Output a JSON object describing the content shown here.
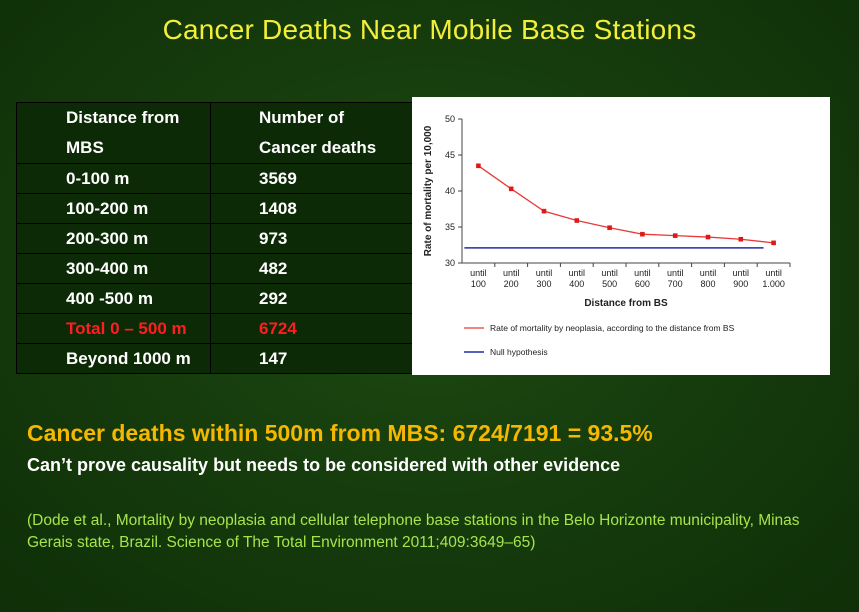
{
  "title": "Cancer Deaths Near Mobile Base Stations",
  "table": {
    "header": [
      "Distance from MBS",
      "Number of Cancer deaths"
    ],
    "header_lines": [
      [
        "Distance from",
        "MBS"
      ],
      [
        "Number of",
        "Cancer deaths"
      ]
    ],
    "rows": [
      [
        "0-100 m",
        "3569"
      ],
      [
        "100-200 m",
        "1408"
      ],
      [
        "200-300 m",
        "973"
      ],
      [
        "300-400 m",
        "482"
      ],
      [
        "400 -500 m",
        "292"
      ],
      [
        "Total 0 – 500 m",
        "6724"
      ],
      [
        "Beyond 1000 m",
        "147"
      ]
    ],
    "highlight_row": 5,
    "highlight_color": "#ff1e1e"
  },
  "chart_data": {
    "type": "line",
    "categories": [
      "until 100",
      "until 200",
      "until 300",
      "until 400",
      "until 500",
      "until 600",
      "until 700",
      "until 800",
      "until 900",
      "until 1.000"
    ],
    "category_lines": [
      [
        "until",
        "100"
      ],
      [
        "until",
        "200"
      ],
      [
        "until",
        "300"
      ],
      [
        "until",
        "400"
      ],
      [
        "until",
        "500"
      ],
      [
        "until",
        "600"
      ],
      [
        "until",
        "700"
      ],
      [
        "until",
        "800"
      ],
      [
        "until",
        "900"
      ],
      [
        "until",
        "1.000"
      ]
    ],
    "series": [
      {
        "name": "Rate of mortality by neoplasia, according to the distance from BS",
        "values": [
          43.5,
          40.3,
          37.2,
          35.9,
          34.9,
          34.0,
          33.8,
          33.6,
          33.3,
          32.8
        ],
        "color": "#e83a3a"
      },
      {
        "name": "Null hypothesis",
        "constant": 32.1,
        "color": "#1f2fa8"
      }
    ],
    "xlabel": "Distance from BS",
    "ylabel": "Rate of mortality per 10,000",
    "ylim": [
      30,
      50
    ],
    "yticks": [
      30,
      35,
      40,
      45,
      50
    ],
    "grid": false,
    "legend_position": "bottom"
  },
  "headline": "Cancer deaths within 500m from MBS: 6724/7191 = 93.5%",
  "subline": "Can’t prove causality but needs to be considered with other evidence",
  "citation": "(Dode et al., Mortality by neoplasia and cellular telephone base stations in the Belo Horizonte municipality, Minas Gerais state, Brazil. Science of The Total Environment 2011;409:3649–65)",
  "colors": {
    "title": "#f2ee3a",
    "headline": "#f5b800",
    "citation": "#a6e44b",
    "background": "#153a0c"
  }
}
